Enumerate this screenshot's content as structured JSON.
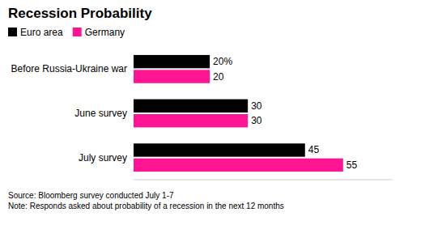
{
  "chart_data": {
    "type": "bar",
    "orientation": "horizontal",
    "title": "Recession Probability",
    "categories": [
      "Before Russia-Ukraine war",
      "June survey",
      "July survey"
    ],
    "series": [
      {
        "name": "Euro area",
        "color": "#000000",
        "values": [
          20,
          30,
          45
        ],
        "value_labels": [
          "20%",
          "30",
          "45"
        ]
      },
      {
        "name": "Germany",
        "color": "#FF1493",
        "values": [
          20,
          30,
          55
        ],
        "value_labels": [
          "20",
          "30",
          "55"
        ]
      }
    ],
    "xlim": [
      0,
      68
    ],
    "data_labels": true,
    "tick_labels": "y",
    "legend": "upper left",
    "annotations": [
      "Source: Bloomberg survey conducted July 1-7",
      "Note: Responds asked about probability of a recession in the next 12 months"
    ]
  }
}
